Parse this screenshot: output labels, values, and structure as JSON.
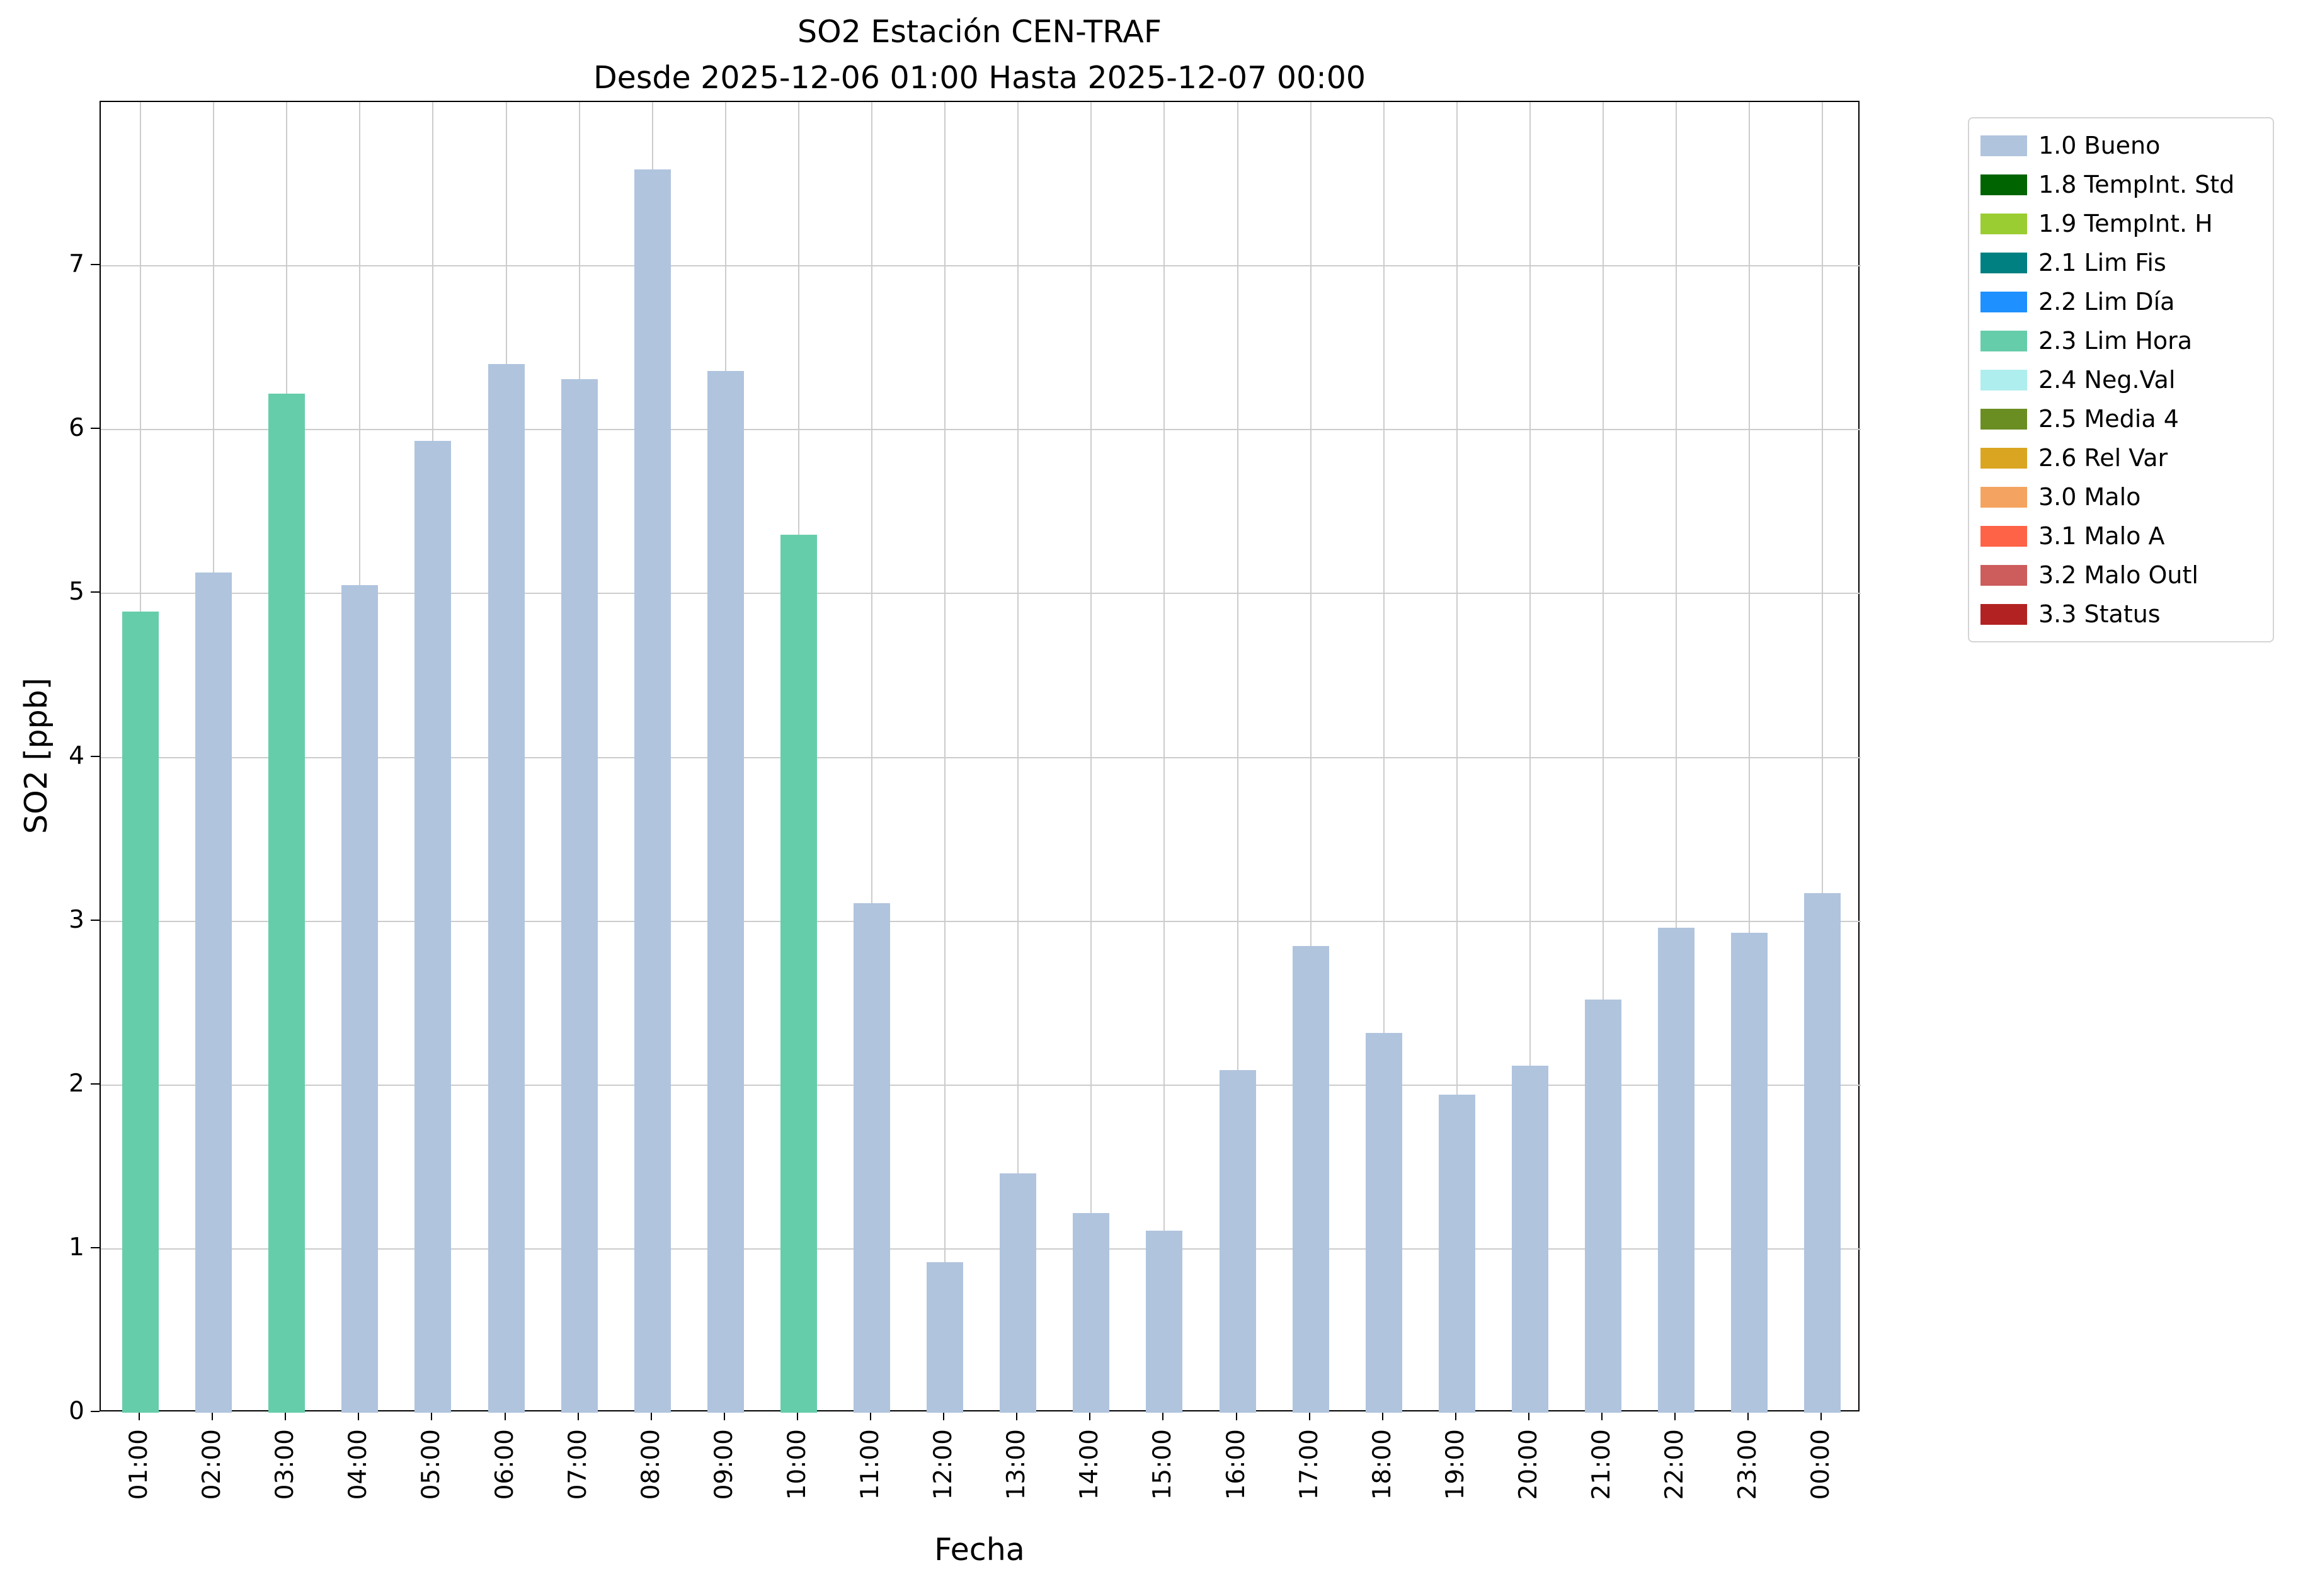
{
  "chart_data": {
    "type": "bar",
    "title": "SO2 Estación CEN-TRAF",
    "subtitle": "Desde 2025-12-06 01:00 Hasta 2025-12-07 00:00",
    "xlabel": "Fecha",
    "ylabel": "SO2 [ppb]",
    "ylim": [
      0,
      8
    ],
    "yticks": [
      0,
      1,
      2,
      3,
      4,
      5,
      6,
      7
    ],
    "grid": true,
    "legend_position": "outside-upper-right",
    "categories": [
      "01:00",
      "02:00",
      "03:00",
      "04:00",
      "05:00",
      "06:00",
      "07:00",
      "08:00",
      "09:00",
      "10:00",
      "11:00",
      "12:00",
      "13:00",
      "14:00",
      "15:00",
      "16:00",
      "17:00",
      "18:00",
      "19:00",
      "20:00",
      "21:00",
      "22:00",
      "23:00",
      "00:00"
    ],
    "series": [
      {
        "name": "SO2",
        "values": [
          4.89,
          5.13,
          6.22,
          5.05,
          5.93,
          6.4,
          6.31,
          7.59,
          6.36,
          5.36,
          3.11,
          0.92,
          1.46,
          1.22,
          1.11,
          2.09,
          2.85,
          2.32,
          1.94,
          2.12,
          2.52,
          2.96,
          2.93,
          3.17
        ],
        "status_per_bar": [
          "2.3 Lim Hora",
          "1.0 Bueno",
          "2.3 Lim Hora",
          "1.0 Bueno",
          "1.0 Bueno",
          "1.0 Bueno",
          "1.0 Bueno",
          "1.0 Bueno",
          "1.0 Bueno",
          "2.3 Lim Hora",
          "1.0 Bueno",
          "1.0 Bueno",
          "1.0 Bueno",
          "1.0 Bueno",
          "1.0 Bueno",
          "1.0 Bueno",
          "1.0 Bueno",
          "1.0 Bueno",
          "1.0 Bueno",
          "1.0 Bueno",
          "1.0 Bueno",
          "1.0 Bueno",
          "1.0 Bueno",
          "1.0 Bueno"
        ]
      }
    ],
    "legend": [
      {
        "label": "1.0 Bueno",
        "color": "#b0c4de"
      },
      {
        "label": "1.8 TempInt. Std",
        "color": "#006400"
      },
      {
        "label": "1.9 TempInt. H",
        "color": "#9acd32"
      },
      {
        "label": "2.1 Lim Fis",
        "color": "#008080"
      },
      {
        "label": "2.2 Lim Día",
        "color": "#1e90ff"
      },
      {
        "label": "2.3 Lim Hora",
        "color": "#66cdaa"
      },
      {
        "label": "2.4 Neg.Val",
        "color": "#afeeee"
      },
      {
        "label": "2.5 Media 4",
        "color": "#6b8e23"
      },
      {
        "label": "2.6 Rel Var",
        "color": "#daa520"
      },
      {
        "label": "3.0 Malo",
        "color": "#f4a460"
      },
      {
        "label": "3.1 Malo A",
        "color": "#ff6347"
      },
      {
        "label": "3.2 Malo Outl",
        "color": "#cd5c5c"
      },
      {
        "label": "3.3 Status",
        "color": "#b22222"
      }
    ],
    "grid_color": "#cccccc",
    "axis_color": "#000000"
  }
}
